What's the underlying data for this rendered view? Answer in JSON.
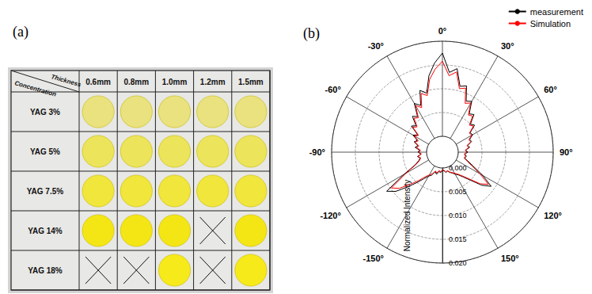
{
  "panel_a": {
    "label": "(a)",
    "corner": {
      "top": "Thickness",
      "bottom": "Concentration"
    },
    "columns": [
      "0.6mm",
      "0.8mm",
      "1.0mm",
      "1.2mm",
      "1.5mm"
    ],
    "rows": [
      {
        "name": "YAG 3%",
        "color": "#e9e27e",
        "cells": [
          true,
          true,
          true,
          true,
          true
        ]
      },
      {
        "name": "YAG 5%",
        "color": "#ece45a",
        "cells": [
          true,
          true,
          true,
          true,
          true
        ]
      },
      {
        "name": "YAG 7.5%",
        "color": "#f0e63c",
        "cells": [
          true,
          true,
          true,
          true,
          true
        ]
      },
      {
        "name": "YAG 14%",
        "color": "#f4e614",
        "cells": [
          true,
          true,
          true,
          false,
          true
        ]
      },
      {
        "name": "YAG 18%",
        "color": "#f7ea1a",
        "cells": [
          false,
          false,
          true,
          false,
          true
        ]
      }
    ]
  },
  "chart_data": {
    "type": "polar",
    "title": "(b)",
    "ylabel": "Normalized Intensity",
    "x": [
      -180,
      -175,
      -170,
      -165,
      -160,
      -155,
      -150,
      -145,
      -140,
      -135,
      -130,
      -125,
      -120,
      -115,
      -110,
      -105,
      -100,
      -95,
      -90,
      -85,
      -80,
      -75,
      -70,
      -65,
      -60,
      -55,
      -50,
      -45,
      -40,
      -35,
      -30,
      -25,
      -20,
      -15,
      -10,
      -5,
      0,
      5,
      10,
      15,
      20,
      25,
      30,
      35,
      40,
      45,
      50,
      55,
      60,
      65,
      70,
      75,
      80,
      85,
      90,
      95,
      100,
      105,
      110,
      115,
      120,
      125,
      130,
      135,
      140,
      145,
      150,
      155,
      160,
      165,
      170,
      175,
      180
    ],
    "series": [
      {
        "name": "measurement",
        "color": "#000000",
        "values": [
          0.0005,
          0.001,
          0.0008,
          0.0015,
          0.001,
          0.002,
          0.0025,
          0.0035,
          0.005,
          0.007,
          0.0095,
          0.011,
          0.006,
          0.003,
          0.002,
          0.0015,
          0.002,
          0.0012,
          0.0018,
          0.0015,
          0.0025,
          0.002,
          0.003,
          0.0025,
          0.0038,
          0.003,
          0.0052,
          0.0045,
          0.0065,
          0.0058,
          0.0085,
          0.0075,
          0.0105,
          0.0095,
          0.013,
          0.0155,
          0.0175,
          0.0135,
          0.0145,
          0.011,
          0.0115,
          0.0085,
          0.009,
          0.0065,
          0.007,
          0.005,
          0.0055,
          0.0038,
          0.004,
          0.003,
          0.0032,
          0.0022,
          0.0025,
          0.0016,
          0.002,
          0.0014,
          0.0018,
          0.0015,
          0.0025,
          0.004,
          0.0065,
          0.0092,
          0.0075,
          0.005,
          0.0035,
          0.0025,
          0.002,
          0.0015,
          0.0012,
          0.0008,
          0.001,
          0.0006,
          0.0005
        ]
      },
      {
        "name": "Simulation",
        "color": "#ff0000",
        "values": [
          0.0004,
          0.0008,
          0.0006,
          0.0012,
          0.0009,
          0.0017,
          0.0022,
          0.003,
          0.0045,
          0.0062,
          0.0085,
          0.0098,
          0.0055,
          0.0028,
          0.0018,
          0.0014,
          0.0019,
          0.0011,
          0.0016,
          0.0013,
          0.0022,
          0.0018,
          0.0028,
          0.0023,
          0.0035,
          0.0028,
          0.0048,
          0.0042,
          0.006,
          0.0055,
          0.008,
          0.007,
          0.0098,
          0.009,
          0.0122,
          0.0142,
          0.0158,
          0.0128,
          0.0138,
          0.0105,
          0.011,
          0.008,
          0.0086,
          0.0062,
          0.0066,
          0.0047,
          0.0052,
          0.0036,
          0.0038,
          0.0028,
          0.003,
          0.002,
          0.0023,
          0.0015,
          0.0018,
          0.0013,
          0.0016,
          0.0014,
          0.0022,
          0.0036,
          0.0058,
          0.0085,
          0.007,
          0.0046,
          0.0032,
          0.0023,
          0.0018,
          0.0014,
          0.0011,
          0.0007,
          0.0009,
          0.0005,
          0.0004
        ]
      }
    ],
    "xlim": [
      -180,
      180
    ],
    "xticks": [
      {
        "value": -150,
        "label": "-150°"
      },
      {
        "value": -120,
        "label": "-120°"
      },
      {
        "value": -90,
        "label": "-90°"
      },
      {
        "value": -60,
        "label": "-60°"
      },
      {
        "value": -30,
        "label": "-30°"
      },
      {
        "value": 0,
        "label": "0°"
      },
      {
        "value": 30,
        "label": "30°"
      },
      {
        "value": 60,
        "label": "60°"
      },
      {
        "value": 90,
        "label": "90°"
      },
      {
        "value": 120,
        "label": "120°"
      },
      {
        "value": 150,
        "label": "150°"
      }
    ],
    "ylim": [
      0,
      0.02
    ],
    "yticks": [
      {
        "value": 0,
        "label": "0.000"
      },
      {
        "value": 0.005,
        "label": "0.005"
      },
      {
        "value": 0.01,
        "label": "0.010"
      },
      {
        "value": 0.015,
        "label": "0.015"
      },
      {
        "value": 0.02,
        "label": "0.020"
      }
    ],
    "grid": true,
    "legend": "upper right"
  }
}
